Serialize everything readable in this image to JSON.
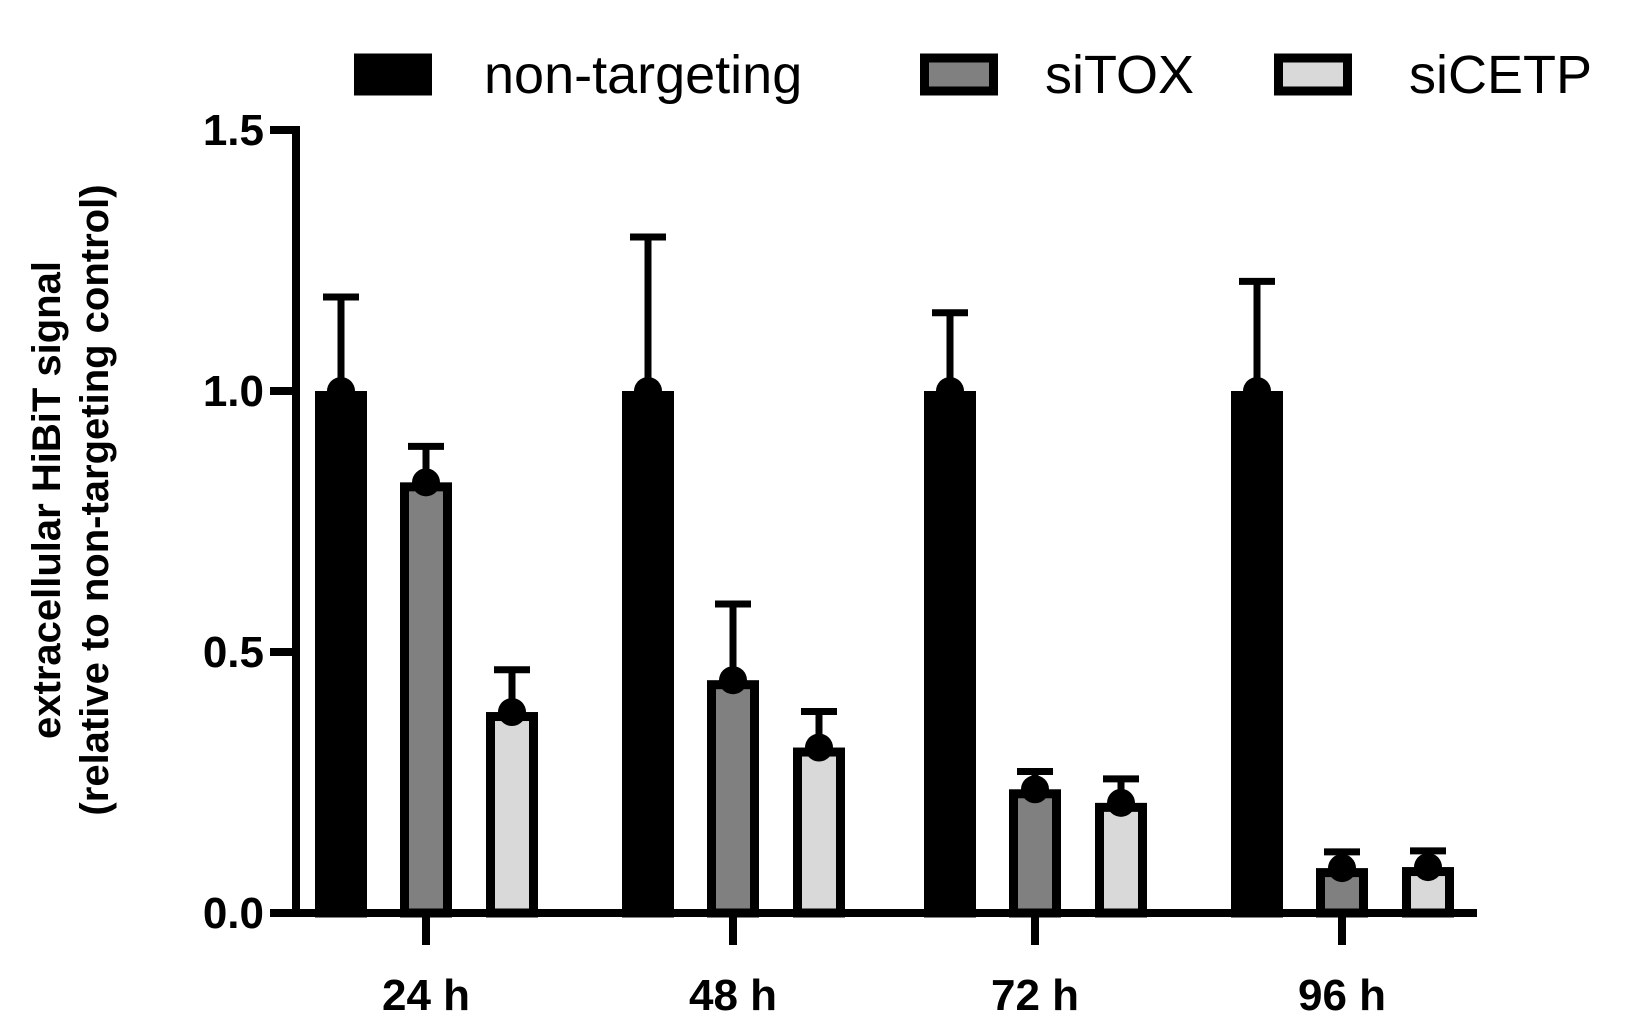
{
  "chart_data": {
    "type": "bar",
    "title": "",
    "xlabel": "",
    "ylabel": [
      "extracellular HiBiT signal",
      "(relative to non-targeting control)"
    ],
    "ylim": [
      0,
      1.5
    ],
    "yticks": [
      "0.0",
      "0.5",
      "1.0",
      "1.5"
    ],
    "categories": [
      "24 h",
      "48 h",
      "72 h",
      "96 h"
    ],
    "legend_position": "top",
    "grid": false,
    "error_bars": "upper only",
    "series": [
      {
        "name": "non-targeting",
        "color": "#000000",
        "values": [
          1.0,
          1.0,
          1.0,
          1.0
        ],
        "error_upper": [
          1.18,
          1.295,
          1.15,
          1.21
        ]
      },
      {
        "name": "siTOX",
        "color": "#808080",
        "values": [
          0.825,
          0.446,
          0.237,
          0.086
        ],
        "error_upper": [
          0.894,
          0.592,
          0.271,
          0.117
        ]
      },
      {
        "name": "siCETP",
        "color": "#d9d9d9",
        "values": [
          0.385,
          0.317,
          0.211,
          0.088
        ],
        "error_upper": [
          0.466,
          0.386,
          0.257,
          0.119
        ]
      }
    ]
  }
}
